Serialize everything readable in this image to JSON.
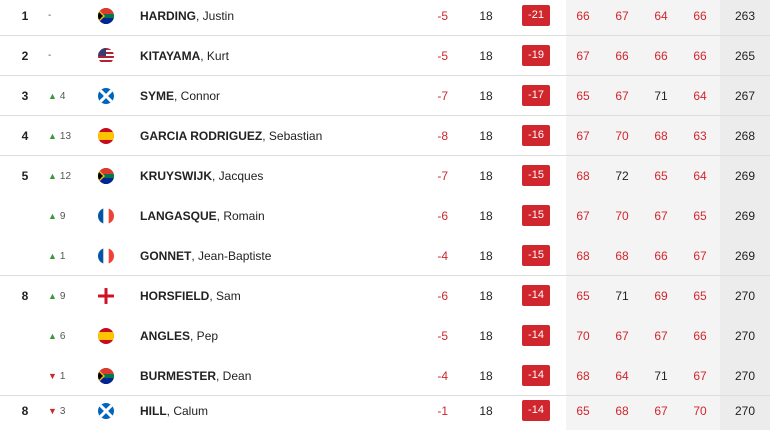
{
  "rows": [
    {
      "pos": "1",
      "move": "-",
      "trend": "none",
      "flag": "za",
      "last": "HARDING",
      "first": ", Justin",
      "today": -5,
      "thru": 18,
      "total": -21,
      "rounds": [
        66,
        67,
        64,
        66
      ],
      "rounds_red": [
        true,
        true,
        true,
        true
      ],
      "strokes": 263,
      "divider": true
    },
    {
      "pos": "2",
      "move": "-",
      "trend": "none",
      "flag": "us",
      "last": "KITAYAMA",
      "first": ", Kurt",
      "today": -5,
      "thru": 18,
      "total": -19,
      "rounds": [
        67,
        66,
        66,
        66
      ],
      "rounds_red": [
        true,
        true,
        true,
        true
      ],
      "strokes": 265,
      "divider": true
    },
    {
      "pos": "3",
      "move": "4",
      "trend": "up",
      "flag": "sco",
      "last": "SYME",
      "first": ", Connor",
      "today": -7,
      "thru": 18,
      "total": -17,
      "rounds": [
        65,
        67,
        71,
        64
      ],
      "rounds_red": [
        true,
        true,
        false,
        true
      ],
      "strokes": 267,
      "divider": true
    },
    {
      "pos": "4",
      "move": "13",
      "trend": "up",
      "flag": "es",
      "last": "GARCIA RODRIGUEZ",
      "first": ", Sebastian",
      "today": -8,
      "thru": 18,
      "total": -16,
      "rounds": [
        67,
        70,
        68,
        63
      ],
      "rounds_red": [
        true,
        true,
        true,
        true
      ],
      "strokes": 268,
      "divider": true
    },
    {
      "pos": "5",
      "move": "12",
      "trend": "up",
      "flag": "za",
      "last": "KRUYSWIJK",
      "first": ", Jacques",
      "today": -7,
      "thru": 18,
      "total": -15,
      "rounds": [
        68,
        72,
        65,
        64
      ],
      "rounds_red": [
        true,
        false,
        true,
        true
      ],
      "strokes": 269,
      "divider": false
    },
    {
      "pos": null,
      "move": "9",
      "trend": "up",
      "flag": "fr",
      "last": "LANGASQUE",
      "first": ", Romain",
      "today": -6,
      "thru": 18,
      "total": -15,
      "rounds": [
        67,
        70,
        67,
        65
      ],
      "rounds_red": [
        true,
        true,
        true,
        true
      ],
      "strokes": 269,
      "divider": false
    },
    {
      "pos": null,
      "move": "1",
      "trend": "up",
      "flag": "fr",
      "last": "GONNET",
      "first": ", Jean-Baptiste",
      "today": -4,
      "thru": 18,
      "total": -15,
      "rounds": [
        68,
        68,
        66,
        67
      ],
      "rounds_red": [
        true,
        true,
        true,
        true
      ],
      "strokes": 269,
      "divider": true
    },
    {
      "pos": "8",
      "move": "9",
      "trend": "up",
      "flag": "eng",
      "last": "HORSFIELD",
      "first": ", Sam",
      "today": -6,
      "thru": 18,
      "total": -14,
      "rounds": [
        65,
        71,
        69,
        65
      ],
      "rounds_red": [
        true,
        false,
        true,
        true
      ],
      "strokes": 270,
      "divider": false
    },
    {
      "pos": null,
      "move": "6",
      "trend": "up",
      "flag": "es",
      "last": "ANGLES",
      "first": ", Pep",
      "today": -5,
      "thru": 18,
      "total": -14,
      "rounds": [
        70,
        67,
        67,
        66
      ],
      "rounds_red": [
        true,
        true,
        true,
        true
      ],
      "strokes": 270,
      "divider": false
    },
    {
      "pos": null,
      "move": "1",
      "trend": "down",
      "flag": "za",
      "last": "BURMESTER",
      "first": ", Dean",
      "today": -4,
      "thru": 18,
      "total": -14,
      "rounds": [
        68,
        64,
        71,
        67
      ],
      "rounds_red": [
        true,
        true,
        false,
        true
      ],
      "strokes": 270,
      "divider": true
    },
    {
      "pos": "8",
      "move": "3",
      "trend": "down",
      "flag": "sco",
      "last": "HILL",
      "first": ", Calum",
      "today": -1,
      "thru": 18,
      "total": -14,
      "rounds": [
        65,
        68,
        67,
        70
      ],
      "rounds_red": [
        true,
        true,
        true,
        true
      ],
      "strokes": 270,
      "divider": false
    }
  ]
}
